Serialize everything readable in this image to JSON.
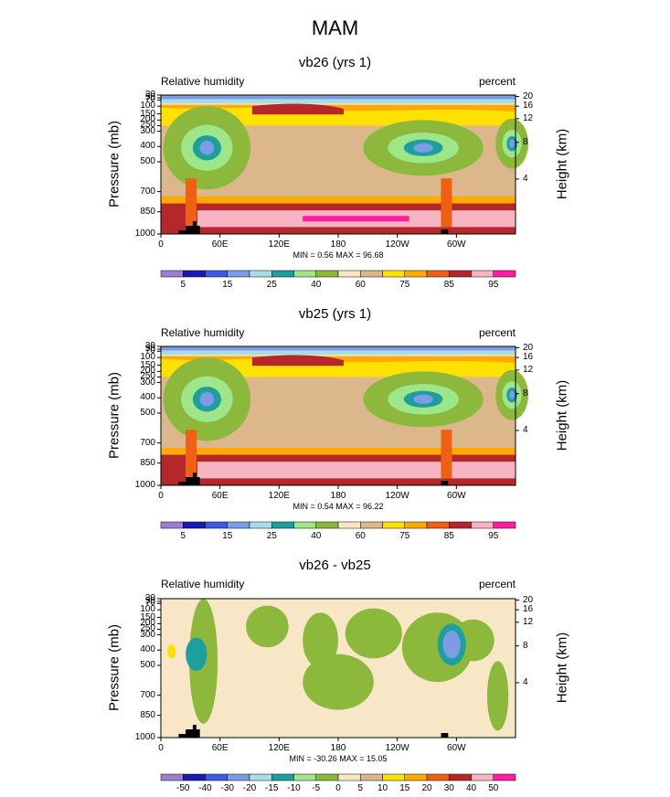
{
  "title": "MAM",
  "chart_data": [
    {
      "type": "heatmap",
      "title": "vb26 (yrs 1)",
      "subtitle_left": "Relative humidity",
      "subtitle_right": "percent",
      "ylabel": "Pressure (mb)",
      "y2label": "Height (km)",
      "xlabel": "",
      "pressure_ticks": [
        "30",
        "50",
        "70",
        "100",
        "150",
        "200",
        "250",
        "300",
        "400",
        "500",
        "700",
        "850",
        "1000"
      ],
      "height_ticks": [
        "20",
        "16",
        "12",
        "8",
        "4"
      ],
      "x_ticks": [
        "0",
        "60E",
        "120E",
        "180",
        "120W",
        "60W"
      ],
      "stats": "MIN =   0.56  MAX =  96.68",
      "levels": [
        "5",
        "15",
        "25",
        "40",
        "60",
        "75",
        "85",
        "95"
      ],
      "colors": [
        "#9a7ed2",
        "#1a18b6",
        "#3c5ae6",
        "#7d9be6",
        "#a9dde6",
        "#1f9e9e",
        "#9ee68a",
        "#8cb83c",
        "#f7e7c6",
        "#dcb78c",
        "#ffe100",
        "#ffaa00",
        "#f06014",
        "#b4282c",
        "#f7b4c3",
        "#ff1ea0"
      ]
    },
    {
      "type": "heatmap",
      "title": "vb25 (yrs 1)",
      "subtitle_left": "Relative humidity",
      "subtitle_right": "percent",
      "ylabel": "Pressure (mb)",
      "y2label": "Height (km)",
      "xlabel": "",
      "pressure_ticks": [
        "30",
        "50",
        "70",
        "100",
        "150",
        "200",
        "250",
        "300",
        "400",
        "500",
        "700",
        "850",
        "1000"
      ],
      "height_ticks": [
        "20",
        "16",
        "12",
        "8",
        "4"
      ],
      "x_ticks": [
        "0",
        "60E",
        "120E",
        "180",
        "120W",
        "60W"
      ],
      "stats": "MIN =   0.54  MAX =  96.22",
      "levels": [
        "5",
        "15",
        "25",
        "40",
        "60",
        "75",
        "85",
        "95"
      ],
      "colors": [
        "#9a7ed2",
        "#1a18b6",
        "#3c5ae6",
        "#7d9be6",
        "#a9dde6",
        "#1f9e9e",
        "#9ee68a",
        "#8cb83c",
        "#f7e7c6",
        "#dcb78c",
        "#ffe100",
        "#ffaa00",
        "#f06014",
        "#b4282c",
        "#f7b4c3",
        "#ff1ea0"
      ]
    },
    {
      "type": "heatmap",
      "title": "vb26 - vb25",
      "subtitle_left": "Relative humidity",
      "subtitle_right": "percent",
      "ylabel": "Pressure (mb)",
      "y2label": "Height (km)",
      "xlabel": "",
      "pressure_ticks": [
        "30",
        "50",
        "70",
        "100",
        "150",
        "200",
        "250",
        "300",
        "400",
        "500",
        "700",
        "850",
        "1000"
      ],
      "height_ticks": [
        "20",
        "16",
        "12",
        "8",
        "4"
      ],
      "x_ticks": [
        "0",
        "60E",
        "120E",
        "180",
        "120W",
        "60W"
      ],
      "stats": "MIN = -30.26  MAX =  15.05",
      "levels": [
        "-50",
        "-40",
        "-30",
        "-20",
        "-15",
        "-10",
        "-5",
        "0",
        "5",
        "10",
        "15",
        "20",
        "30",
        "40",
        "50"
      ],
      "colors": [
        "#9a7ed2",
        "#1a18b6",
        "#3c5ae6",
        "#7d9be6",
        "#a9dde6",
        "#1f9e9e",
        "#9ee68a",
        "#8cb83c",
        "#f7e7c6",
        "#dcb78c",
        "#ffe100",
        "#ffaa00",
        "#f06014",
        "#b4282c",
        "#f7b4c3",
        "#ff1ea0"
      ]
    }
  ]
}
